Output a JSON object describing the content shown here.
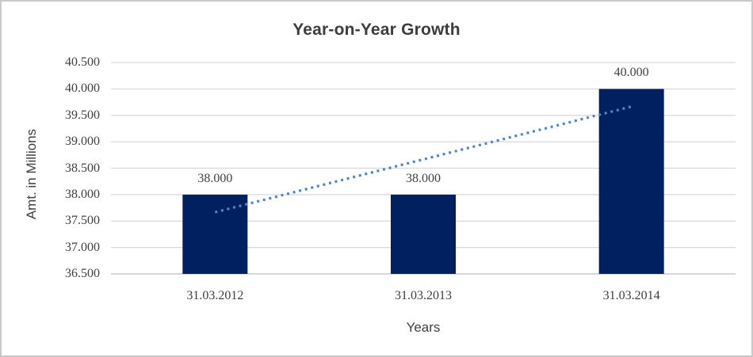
{
  "chart_data": {
    "type": "bar",
    "title": "Year-on-Year Growth",
    "xlabel": "Years",
    "ylabel": "Amt. in Millions",
    "categories": [
      "31.03.2012",
      "31.03.2013",
      "31.03.2014"
    ],
    "values": [
      38.0,
      38.0,
      40.0
    ],
    "data_labels": [
      "38.000",
      "38.000",
      "40.000"
    ],
    "ylim": [
      36.5,
      40.5
    ],
    "ytick_values": [
      36.5,
      37.0,
      37.5,
      38.0,
      38.5,
      39.0,
      39.5,
      40.0,
      40.5
    ],
    "ytick_labels": [
      "36.500",
      "37.000",
      "37.500",
      "38.000",
      "38.500",
      "39.000",
      "39.500",
      "40.000",
      "40.500"
    ],
    "grid": true,
    "legend": "none",
    "trendline": {
      "type": "linear",
      "style": "dotted",
      "start_category_index": 0,
      "end_category_index": 2,
      "start_value": 37.667,
      "end_value": 39.667
    },
    "colors": {
      "bar": "#002060",
      "trendline": "#4f86c6",
      "gridline": "#d9d9d9",
      "axis_line": "#bfbfbf",
      "text": "#404040",
      "border": "#c9c9c9",
      "background": "#ffffff"
    }
  }
}
